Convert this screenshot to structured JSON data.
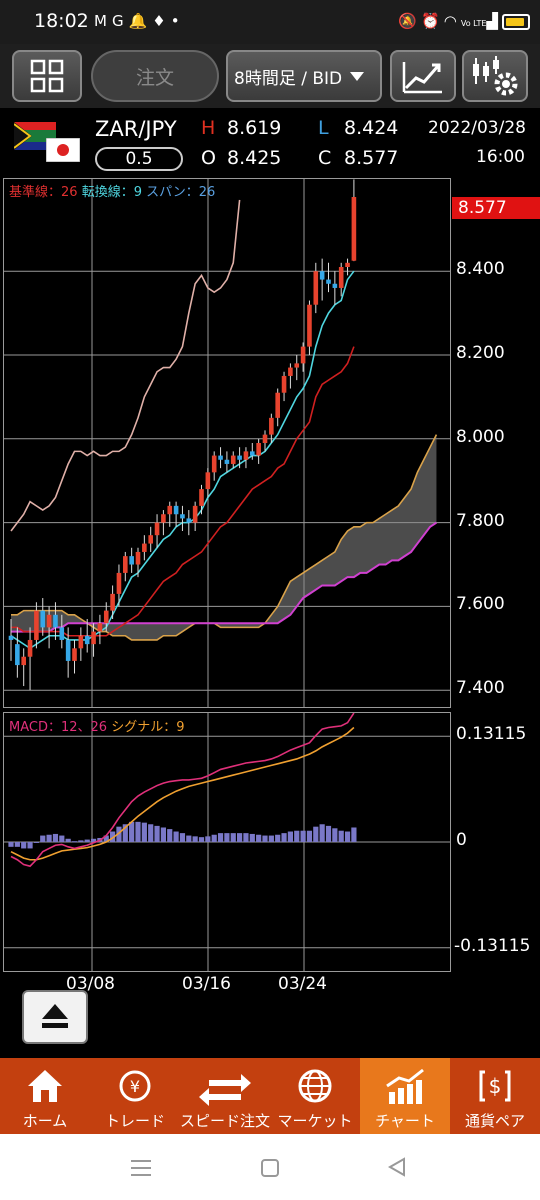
{
  "status_bar": {
    "time": "18:02",
    "notification_icons": [
      "gmail-icon",
      "g-icon",
      "bell-icon",
      "twitter-icon",
      "dot-icon"
    ],
    "system_icons": [
      "mute-icon",
      "alarm-icon",
      "wifi-icon",
      "volte-icon",
      "signal-icon",
      "battery-icon"
    ],
    "network_label": "Vo LTE"
  },
  "toolbar": {
    "order_label": "注文",
    "period_label": "8時間足 / BID"
  },
  "header": {
    "pair": "ZAR/JPY",
    "lot": "0.5",
    "high_label": "H",
    "high": "8.619",
    "low_label": "L",
    "low": "8.424",
    "open_label": "O",
    "open": "8.425",
    "close_label": "C",
    "close": "8.577",
    "date": "2022/03/28",
    "time": "16:00"
  },
  "indicators": {
    "kijun": "基準線：26",
    "tenkan": "転換線：9",
    "span": "スパン：26",
    "macd": "MACD：12、26",
    "signal": "シグナル：9"
  },
  "current_price": "8.577",
  "chart_data": [
    {
      "type": "candlestick",
      "ylim": [
        7.36,
        8.62
      ],
      "y_ticks": [
        "8.400",
        "8.200",
        "8.000",
        "7.800",
        "7.600",
        "7.400"
      ],
      "x_ticks": [
        "03/08",
        "03/16",
        "03/24"
      ],
      "candles": [
        [
          7.53,
          7.57,
          7.47,
          7.52
        ],
        [
          7.51,
          7.55,
          7.43,
          7.46
        ],
        [
          7.46,
          7.5,
          7.41,
          7.48
        ],
        [
          7.48,
          7.55,
          7.4,
          7.52
        ],
        [
          7.52,
          7.61,
          7.5,
          7.59
        ],
        [
          7.59,
          7.62,
          7.53,
          7.55
        ],
        [
          7.55,
          7.6,
          7.5,
          7.58
        ],
        [
          7.58,
          7.61,
          7.52,
          7.55
        ],
        [
          7.55,
          7.58,
          7.5,
          7.52
        ],
        [
          7.52,
          7.55,
          7.43,
          7.47
        ],
        [
          7.47,
          7.52,
          7.44,
          7.5
        ],
        [
          7.5,
          7.55,
          7.47,
          7.53
        ],
        [
          7.53,
          7.57,
          7.49,
          7.51
        ],
        [
          7.51,
          7.56,
          7.48,
          7.54
        ],
        [
          7.54,
          7.58,
          7.51,
          7.56
        ],
        [
          7.56,
          7.61,
          7.54,
          7.59
        ],
        [
          7.59,
          7.65,
          7.57,
          7.63
        ],
        [
          7.63,
          7.7,
          7.6,
          7.68
        ],
        [
          7.68,
          7.73,
          7.66,
          7.72
        ],
        [
          7.72,
          7.74,
          7.68,
          7.7
        ],
        [
          7.7,
          7.74,
          7.67,
          7.73
        ],
        [
          7.73,
          7.77,
          7.71,
          7.75
        ],
        [
          7.75,
          7.79,
          7.73,
          7.77
        ],
        [
          7.77,
          7.82,
          7.74,
          7.8
        ],
        [
          7.8,
          7.83,
          7.77,
          7.82
        ],
        [
          7.82,
          7.85,
          7.79,
          7.84
        ],
        [
          7.84,
          7.85,
          7.79,
          7.82
        ],
        [
          7.82,
          7.84,
          7.78,
          7.81
        ],
        [
          7.81,
          7.83,
          7.77,
          7.8
        ],
        [
          7.8,
          7.85,
          7.78,
          7.84
        ],
        [
          7.84,
          7.89,
          7.82,
          7.88
        ],
        [
          7.88,
          7.93,
          7.86,
          7.92
        ],
        [
          7.92,
          7.97,
          7.9,
          7.96
        ],
        [
          7.96,
          7.98,
          7.93,
          7.95
        ],
        [
          7.95,
          7.97,
          7.92,
          7.94
        ],
        [
          7.94,
          7.97,
          7.93,
          7.96
        ],
        [
          7.96,
          7.98,
          7.93,
          7.95
        ],
        [
          7.95,
          7.98,
          7.93,
          7.97
        ],
        [
          7.97,
          7.99,
          7.95,
          7.96
        ],
        [
          7.96,
          8.0,
          7.94,
          7.99
        ],
        [
          7.99,
          8.02,
          7.97,
          8.01
        ],
        [
          8.01,
          8.06,
          7.99,
          8.05
        ],
        [
          8.05,
          8.12,
          8.03,
          8.11
        ],
        [
          8.11,
          8.16,
          8.09,
          8.15
        ],
        [
          8.15,
          8.18,
          8.12,
          8.17
        ],
        [
          8.17,
          8.2,
          8.14,
          8.18
        ],
        [
          8.18,
          8.23,
          8.16,
          8.22
        ],
        [
          8.22,
          8.33,
          8.2,
          8.32
        ],
        [
          8.32,
          8.42,
          8.3,
          8.4
        ],
        [
          8.4,
          8.43,
          8.33,
          8.38
        ],
        [
          8.38,
          8.42,
          8.35,
          8.37
        ],
        [
          8.37,
          8.4,
          8.32,
          8.36
        ],
        [
          8.36,
          8.42,
          8.34,
          8.41
        ],
        [
          8.41,
          8.43,
          8.39,
          8.42
        ],
        [
          8.425,
          8.619,
          8.424,
          8.577
        ]
      ],
      "tenkan": [
        7.53,
        7.52,
        7.51,
        7.5,
        7.51,
        7.52,
        7.53,
        7.53,
        7.53,
        7.52,
        7.52,
        7.52,
        7.52,
        7.53,
        7.54,
        7.55,
        7.58,
        7.61,
        7.64,
        7.67,
        7.68,
        7.7,
        7.72,
        7.74,
        7.76,
        7.77,
        7.79,
        7.8,
        7.8,
        7.81,
        7.83,
        7.86,
        7.88,
        7.91,
        7.92,
        7.93,
        7.94,
        7.95,
        7.96,
        7.96,
        7.97,
        7.99,
        8.01,
        8.04,
        8.07,
        8.1,
        8.12,
        8.15,
        8.22,
        8.27,
        8.3,
        8.32,
        8.33,
        8.38,
        8.4
      ],
      "kijun": [
        7.55,
        7.55,
        7.54,
        7.54,
        7.54,
        7.54,
        7.54,
        7.54,
        7.54,
        7.53,
        7.53,
        7.53,
        7.53,
        7.53,
        7.53,
        7.53,
        7.54,
        7.55,
        7.56,
        7.57,
        7.58,
        7.6,
        7.62,
        7.64,
        7.66,
        7.67,
        7.68,
        7.7,
        7.71,
        7.72,
        7.73,
        7.75,
        7.77,
        7.79,
        7.8,
        7.82,
        7.84,
        7.86,
        7.88,
        7.89,
        7.9,
        7.91,
        7.93,
        7.94,
        7.97,
        8.0,
        8.02,
        8.04,
        8.1,
        8.13,
        8.14,
        8.15,
        8.16,
        8.18,
        8.22
      ],
      "chikou": [
        7.78,
        7.8,
        7.82,
        7.85,
        7.84,
        7.83,
        7.84,
        7.86,
        7.9,
        7.94,
        7.97,
        7.97,
        7.96,
        7.97,
        7.96,
        7.96,
        7.97,
        7.97,
        7.98,
        8.01,
        8.05,
        8.1,
        8.13,
        8.16,
        8.17,
        8.17,
        8.19,
        8.22,
        8.3,
        8.37,
        8.39,
        8.36,
        8.35,
        8.36,
        8.38,
        8.42,
        8.57
      ],
      "span_a": [
        7.58,
        7.58,
        7.59,
        7.59,
        7.59,
        7.59,
        7.59,
        7.59,
        7.59,
        7.58,
        7.58,
        7.57,
        7.56,
        7.55,
        7.54,
        7.54,
        7.53,
        7.53,
        7.53,
        7.52,
        7.52,
        7.52,
        7.52,
        7.52,
        7.53,
        7.53,
        7.53,
        7.54,
        7.55,
        7.56,
        7.56,
        7.56,
        7.56,
        7.55,
        7.55,
        7.55,
        7.55,
        7.55,
        7.55,
        7.55,
        7.56,
        7.58,
        7.6,
        7.63,
        7.66,
        7.67,
        7.68,
        7.69,
        7.7,
        7.71,
        7.72,
        7.73,
        7.76,
        7.78,
        7.79,
        7.79,
        7.8,
        7.8,
        7.81,
        7.82,
        7.83,
        7.84,
        7.86,
        7.88,
        7.92,
        7.95,
        7.98,
        8.01
      ],
      "span_b": [
        7.54,
        7.54,
        7.54,
        7.54,
        7.54,
        7.54,
        7.54,
        7.55,
        7.55,
        7.56,
        7.56,
        7.56,
        7.56,
        7.56,
        7.56,
        7.56,
        7.56,
        7.56,
        7.56,
        7.56,
        7.56,
        7.56,
        7.56,
        7.56,
        7.56,
        7.56,
        7.56,
        7.56,
        7.56,
        7.56,
        7.56,
        7.56,
        7.56,
        7.56,
        7.56,
        7.56,
        7.56,
        7.56,
        7.56,
        7.56,
        7.56,
        7.56,
        7.56,
        7.57,
        7.58,
        7.6,
        7.62,
        7.63,
        7.64,
        7.65,
        7.65,
        7.65,
        7.66,
        7.67,
        7.67,
        7.68,
        7.68,
        7.69,
        7.7,
        7.7,
        7.71,
        7.71,
        7.72,
        7.73,
        7.75,
        7.77,
        7.79,
        7.8
      ]
    },
    {
      "type": "bar",
      "name": "MACD",
      "ylim": [
        -0.16,
        0.16
      ],
      "y_ticks": [
        "0.13115",
        "0",
        "-0.13115"
      ],
      "macd": [
        -0.018,
        -0.022,
        -0.028,
        -0.03,
        -0.022,
        -0.012,
        -0.008,
        -0.004,
        -0.003,
        -0.006,
        -0.008,
        -0.006,
        -0.004,
        -0.001,
        0.002,
        0.008,
        0.018,
        0.03,
        0.04,
        0.05,
        0.057,
        0.062,
        0.066,
        0.07,
        0.073,
        0.075,
        0.076,
        0.077,
        0.077,
        0.078,
        0.079,
        0.082,
        0.086,
        0.09,
        0.092,
        0.094,
        0.096,
        0.098,
        0.099,
        0.1,
        0.101,
        0.103,
        0.106,
        0.11,
        0.114,
        0.117,
        0.12,
        0.123,
        0.132,
        0.14,
        0.142,
        0.143,
        0.144,
        0.148,
        0.16
      ],
      "signal": [
        -0.012,
        -0.016,
        -0.02,
        -0.022,
        -0.022,
        -0.02,
        -0.017,
        -0.014,
        -0.011,
        -0.01,
        -0.009,
        -0.008,
        -0.007,
        -0.005,
        -0.003,
        0.0,
        0.005,
        0.011,
        0.018,
        0.025,
        0.032,
        0.038,
        0.044,
        0.05,
        0.055,
        0.059,
        0.063,
        0.066,
        0.069,
        0.071,
        0.073,
        0.075,
        0.077,
        0.079,
        0.081,
        0.083,
        0.085,
        0.087,
        0.089,
        0.091,
        0.093,
        0.095,
        0.097,
        0.099,
        0.101,
        0.103,
        0.106,
        0.109,
        0.113,
        0.118,
        0.122,
        0.126,
        0.13,
        0.135,
        0.142
      ],
      "histogram": [
        -0.006,
        -0.006,
        -0.008,
        -0.008,
        0.0,
        0.008,
        0.009,
        0.01,
        0.008,
        0.004,
        0.001,
        0.002,
        0.003,
        0.004,
        0.005,
        0.008,
        0.013,
        0.019,
        0.022,
        0.025,
        0.025,
        0.024,
        0.022,
        0.02,
        0.018,
        0.016,
        0.013,
        0.011,
        0.008,
        0.007,
        0.006,
        0.007,
        0.009,
        0.011,
        0.011,
        0.011,
        0.011,
        0.011,
        0.01,
        0.009,
        0.008,
        0.008,
        0.009,
        0.011,
        0.013,
        0.014,
        0.014,
        0.014,
        0.019,
        0.022,
        0.02,
        0.017,
        0.014,
        0.013,
        0.018
      ]
    }
  ],
  "bottom_nav": [
    {
      "label": "ホーム",
      "icon": "home-icon"
    },
    {
      "label": "トレード",
      "icon": "trade-icon"
    },
    {
      "label": "スピード注文",
      "icon": "speed-order-icon"
    },
    {
      "label": "マーケット",
      "icon": "market-icon"
    },
    {
      "label": "チャート",
      "icon": "chart-icon",
      "active": true
    },
    {
      "label": "通貨ペア",
      "icon": "currency-pair-icon"
    }
  ],
  "colors": {
    "up": "#e8432e",
    "down": "#36a8e8",
    "tenkan": "#4fd6e0",
    "kijun": "#d02020",
    "chikou": "#e0b0a8",
    "span_a": "#d9a24a",
    "span_b": "#d040d0",
    "macd": "#e0307a",
    "signal": "#f0a030",
    "histogram": "#7a78c8",
    "nav_bg": "#c3400f",
    "nav_active": "#e8781c",
    "price_badge": "#e01212"
  }
}
